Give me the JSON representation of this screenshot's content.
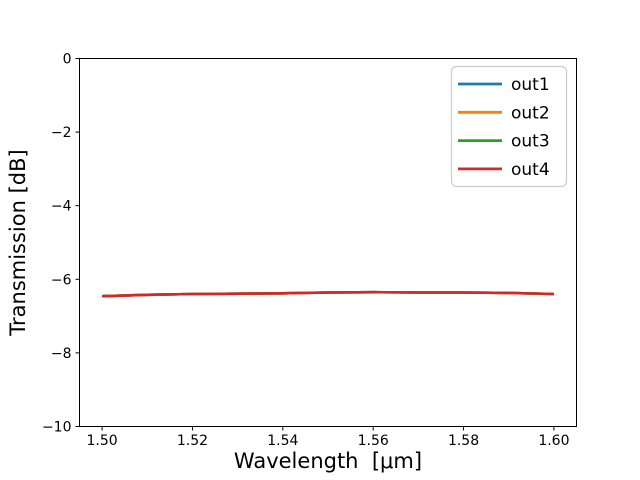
{
  "figure": {
    "background": "#ffffff"
  },
  "chart_data": {
    "type": "line",
    "title": "",
    "xlabel": "Wavelength  [μm]",
    "ylabel": "Transmission [dB]",
    "xlim": [
      1.495,
      1.605
    ],
    "ylim": [
      -10,
      0
    ],
    "xticks": [
      1.5,
      1.52,
      1.54,
      1.56,
      1.58,
      1.6
    ],
    "xtick_labels": [
      "1.50",
      "1.52",
      "1.54",
      "1.56",
      "1.58",
      "1.60"
    ],
    "yticks": [
      0,
      -2,
      -4,
      -6,
      -8,
      -10
    ],
    "ytick_labels": [
      "0",
      "−2",
      "−4",
      "−6",
      "−8",
      "−10"
    ],
    "grid": false,
    "legend_position": "upper right",
    "x": [
      1.5,
      1.51,
      1.52,
      1.53,
      1.54,
      1.55,
      1.56,
      1.57,
      1.58,
      1.59,
      1.6
    ],
    "series": [
      {
        "name": "out1",
        "color": "#1f77b4",
        "values": [
          -6.46,
          -6.42,
          -6.4,
          -6.39,
          -6.38,
          -6.36,
          -6.35,
          -6.36,
          -6.36,
          -6.37,
          -6.4
        ]
      },
      {
        "name": "out2",
        "color": "#ff7f0e",
        "values": [
          -6.46,
          -6.42,
          -6.4,
          -6.39,
          -6.38,
          -6.36,
          -6.35,
          -6.36,
          -6.36,
          -6.37,
          -6.4
        ]
      },
      {
        "name": "out3",
        "color": "#2ca02c",
        "values": [
          -6.46,
          -6.42,
          -6.4,
          -6.39,
          -6.38,
          -6.36,
          -6.35,
          -6.36,
          -6.36,
          -6.37,
          -6.4
        ]
      },
      {
        "name": "out4",
        "color": "#d62728",
        "values": [
          -6.46,
          -6.42,
          -6.4,
          -6.39,
          -6.38,
          -6.36,
          -6.35,
          -6.36,
          -6.36,
          -6.37,
          -6.4
        ]
      }
    ]
  }
}
